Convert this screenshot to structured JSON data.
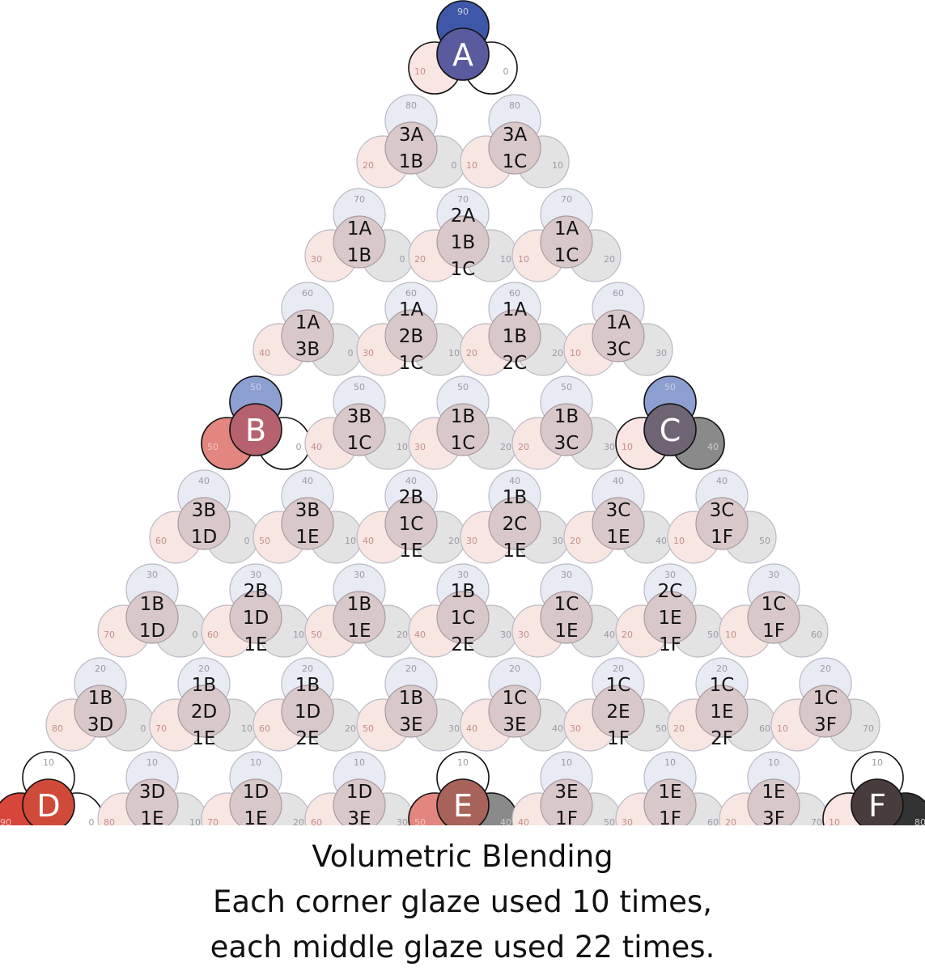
{
  "caption": {
    "line1": "Volumetric Blending",
    "line2": "Each corner glaze used 10 times,",
    "line3": "each middle glaze used 22 times."
  },
  "colors": {
    "top_glaze": "#3f57a8",
    "left_glaze": "#d8453a",
    "right_glaze": "#3a3a3a",
    "faded_top": "#e8ebf4",
    "faded_left": "#f8e6e2",
    "faded_right": "#e3e3e3",
    "faded_center": "#d8c8ca"
  },
  "nodes": [
    {
      "row": 0,
      "col": 0,
      "label": [
        "A"
      ],
      "top": "90",
      "left": "10",
      "right": "0",
      "key": true,
      "center": "#5a5a9e",
      "tf": "#3f57a8",
      "lf": "#f9e5e2",
      "rf": "#ffffff"
    },
    {
      "row": 1,
      "col": 0,
      "label": [
        "3A",
        "1B"
      ],
      "top": "80",
      "left": "20",
      "right": "0"
    },
    {
      "row": 1,
      "col": 1,
      "label": [
        "3A",
        "1C"
      ],
      "top": "80",
      "left": "10",
      "right": "10"
    },
    {
      "row": 2,
      "col": 0,
      "label": [
        "1A",
        "1B"
      ],
      "top": "70",
      "left": "30",
      "right": "0"
    },
    {
      "row": 2,
      "col": 1,
      "label": [
        "2A",
        "1B",
        "1C"
      ],
      "top": "70",
      "left": "20",
      "right": "10"
    },
    {
      "row": 2,
      "col": 2,
      "label": [
        "1A",
        "1C"
      ],
      "top": "70",
      "left": "10",
      "right": "20"
    },
    {
      "row": 3,
      "col": 0,
      "label": [
        "1A",
        "3B"
      ],
      "top": "60",
      "left": "40",
      "right": "0"
    },
    {
      "row": 3,
      "col": 1,
      "label": [
        "1A",
        "2B",
        "1C"
      ],
      "top": "60",
      "left": "30",
      "right": "10"
    },
    {
      "row": 3,
      "col": 2,
      "label": [
        "1A",
        "1B",
        "2C"
      ],
      "top": "60",
      "left": "20",
      "right": "20"
    },
    {
      "row": 3,
      "col": 3,
      "label": [
        "1A",
        "3C"
      ],
      "top": "60",
      "left": "10",
      "right": "30"
    },
    {
      "row": 4,
      "col": 0,
      "label": [
        "B"
      ],
      "top": "50",
      "left": "50",
      "right": "0",
      "key": true,
      "center": "#b5616e",
      "tf": "#8d9ed0",
      "lf": "#e2867f",
      "rf": "#ffffff"
    },
    {
      "row": 4,
      "col": 1,
      "label": [
        "3B",
        "1C"
      ],
      "top": "50",
      "left": "40",
      "right": "10"
    },
    {
      "row": 4,
      "col": 2,
      "label": [
        "1B",
        "1C"
      ],
      "top": "50",
      "left": "30",
      "right": "20"
    },
    {
      "row": 4,
      "col": 3,
      "label": [
        "1B",
        "3C"
      ],
      "top": "50",
      "left": "20",
      "right": "30"
    },
    {
      "row": 4,
      "col": 4,
      "label": [
        "C"
      ],
      "top": "50",
      "left": "10",
      "right": "40",
      "key": true,
      "center": "#6e6474",
      "tf": "#8d9ed0",
      "lf": "#f9e5e2",
      "rf": "#8a8a8a"
    },
    {
      "row": 5,
      "col": 0,
      "label": [
        "3B",
        "1D"
      ],
      "top": "40",
      "left": "60",
      "right": "0"
    },
    {
      "row": 5,
      "col": 1,
      "label": [
        "3B",
        "1E"
      ],
      "top": "40",
      "left": "50",
      "right": "10"
    },
    {
      "row": 5,
      "col": 2,
      "label": [
        "2B",
        "1C",
        "1E"
      ],
      "top": "40",
      "left": "40",
      "right": "20"
    },
    {
      "row": 5,
      "col": 3,
      "label": [
        "1B",
        "2C",
        "1E"
      ],
      "top": "40",
      "left": "30",
      "right": "30"
    },
    {
      "row": 5,
      "col": 4,
      "label": [
        "3C",
        "1E"
      ],
      "top": "40",
      "left": "20",
      "right": "40"
    },
    {
      "row": 5,
      "col": 5,
      "label": [
        "3C",
        "1F"
      ],
      "top": "40",
      "left": "10",
      "right": "50"
    },
    {
      "row": 6,
      "col": 0,
      "label": [
        "1B",
        "1D"
      ],
      "top": "30",
      "left": "70",
      "right": "0"
    },
    {
      "row": 6,
      "col": 1,
      "label": [
        "2B",
        "1D",
        "1E"
      ],
      "top": "30",
      "left": "60",
      "right": "10"
    },
    {
      "row": 6,
      "col": 2,
      "label": [
        "1B",
        "1E"
      ],
      "top": "30",
      "left": "50",
      "right": "20"
    },
    {
      "row": 6,
      "col": 3,
      "label": [
        "1B",
        "1C",
        "2E"
      ],
      "top": "30",
      "left": "40",
      "right": "30"
    },
    {
      "row": 6,
      "col": 4,
      "label": [
        "1C",
        "1E"
      ],
      "top": "30",
      "left": "30",
      "right": "40"
    },
    {
      "row": 6,
      "col": 5,
      "label": [
        "2C",
        "1E",
        "1F"
      ],
      "top": "30",
      "left": "20",
      "right": "50"
    },
    {
      "row": 6,
      "col": 6,
      "label": [
        "1C",
        "1F"
      ],
      "top": "30",
      "left": "10",
      "right": "60"
    },
    {
      "row": 7,
      "col": 0,
      "label": [
        "1B",
        "3D"
      ],
      "top": "20",
      "left": "80",
      "right": "0"
    },
    {
      "row": 7,
      "col": 1,
      "label": [
        "1B",
        "2D",
        "1E"
      ],
      "top": "20",
      "left": "70",
      "right": "10"
    },
    {
      "row": 7,
      "col": 2,
      "label": [
        "1B",
        "1D",
        "2E"
      ],
      "top": "20",
      "left": "60",
      "right": "20"
    },
    {
      "row": 7,
      "col": 3,
      "label": [
        "1B",
        "3E"
      ],
      "top": "20",
      "left": "50",
      "right": "30"
    },
    {
      "row": 7,
      "col": 4,
      "label": [
        "1C",
        "3E"
      ],
      "top": "20",
      "left": "40",
      "right": "40"
    },
    {
      "row": 7,
      "col": 5,
      "label": [
        "1C",
        "2E",
        "1F"
      ],
      "top": "20",
      "left": "30",
      "right": "50"
    },
    {
      "row": 7,
      "col": 6,
      "label": [
        "1C",
        "1E",
        "2F"
      ],
      "top": "20",
      "left": "20",
      "right": "60"
    },
    {
      "row": 7,
      "col": 7,
      "label": [
        "1C",
        "3F"
      ],
      "top": "20",
      "left": "10",
      "right": "70"
    },
    {
      "row": 8,
      "col": 0,
      "label": [
        "D"
      ],
      "top": "10",
      "left": "90",
      "right": "0",
      "key": true,
      "center": "#d04a3a",
      "tf": "#ffffff",
      "lf": "#d8453a",
      "rf": "#ffffff"
    },
    {
      "row": 8,
      "col": 1,
      "label": [
        "3D",
        "1E"
      ],
      "top": "10",
      "left": "80",
      "right": "10"
    },
    {
      "row": 8,
      "col": 2,
      "label": [
        "1D",
        "1E"
      ],
      "top": "10",
      "left": "70",
      "right": "20"
    },
    {
      "row": 8,
      "col": 3,
      "label": [
        "1D",
        "3E"
      ],
      "top": "10",
      "left": "60",
      "right": "30"
    },
    {
      "row": 8,
      "col": 4,
      "label": [
        "E"
      ],
      "top": "10",
      "left": "50",
      "right": "40",
      "key": true,
      "center": "#a8645a",
      "tf": "#ffffff",
      "lf": "#e2867f",
      "rf": "#8a8a8a"
    },
    {
      "row": 8,
      "col": 5,
      "label": [
        "3E",
        "1F"
      ],
      "top": "10",
      "left": "40",
      "right": "50"
    },
    {
      "row": 8,
      "col": 6,
      "label": [
        "1E",
        "1F"
      ],
      "top": "10",
      "left": "30",
      "right": "60"
    },
    {
      "row": 8,
      "col": 7,
      "label": [
        "1E",
        "3F"
      ],
      "top": "10",
      "left": "20",
      "right": "70"
    },
    {
      "row": 8,
      "col": 8,
      "label": [
        "F"
      ],
      "top": "10",
      "left": "10",
      "right": "80",
      "key": true,
      "center": "#483c3c",
      "tf": "#ffffff",
      "lf": "#f9e5e2",
      "rf": "#333333"
    }
  ]
}
